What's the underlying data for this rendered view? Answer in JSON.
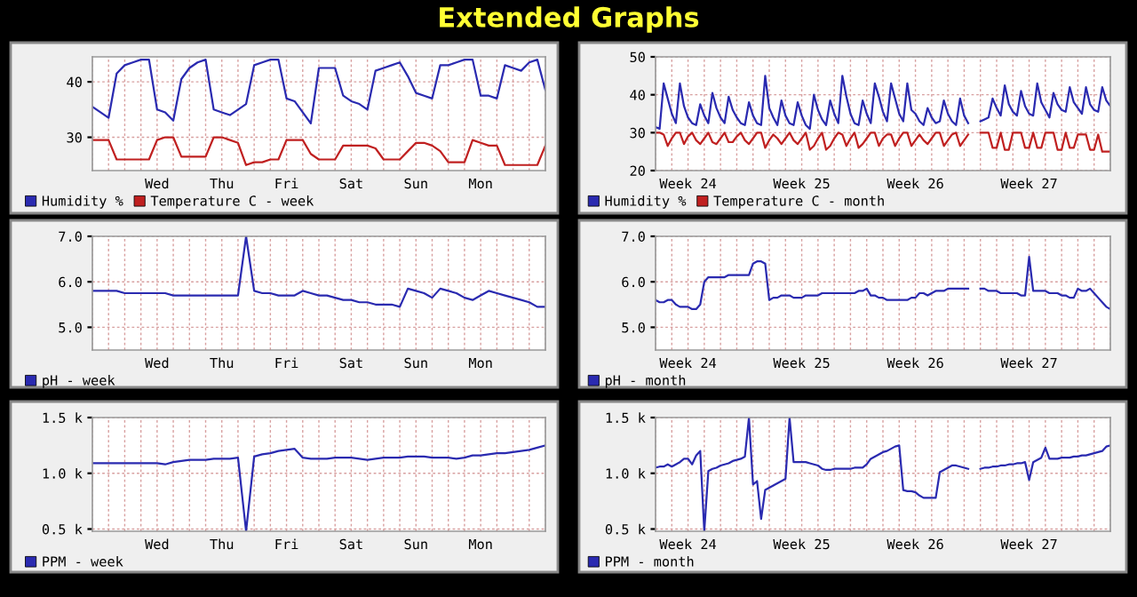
{
  "chart_data": [
    {
      "type": "line",
      "title": "Extended Graphs",
      "ylim": [
        24,
        44.5
      ],
      "yticks": [
        30,
        40
      ],
      "categories": [
        null,
        null,
        null,
        null,
        null,
        null,
        null,
        null,
        "Wed",
        null,
        null,
        null,
        null,
        null,
        null,
        null,
        "Thu",
        null,
        null,
        null,
        null,
        null,
        null,
        null,
        "Fri",
        null,
        null,
        null,
        null,
        null,
        null,
        null,
        "Sat",
        null,
        null,
        null,
        null,
        null,
        null,
        null,
        "Sun",
        null,
        null,
        null,
        null,
        null,
        null,
        null,
        "Mon",
        null,
        null,
        null,
        null,
        null,
        null,
        null,
        null
      ],
      "grid": true,
      "legend": "bottom",
      "series": [
        {
          "name": "Humidity %",
          "color": "#2a2ab0",
          "values": [
            35.5,
            34.5,
            33.5,
            41.5,
            43,
            43.5,
            44,
            44,
            35,
            34.5,
            33,
            40.5,
            42.5,
            43.5,
            44,
            35,
            34.5,
            34,
            35,
            36,
            43,
            43.5,
            44,
            44,
            37,
            36.5,
            34.5,
            32.5,
            42.5,
            42.5,
            42.5,
            37.5,
            36.5,
            36,
            35,
            42,
            42.5,
            43,
            43.5,
            41,
            38,
            37.5,
            37,
            43,
            43,
            43.5,
            44,
            44,
            37.5,
            37.5,
            37,
            43,
            42.5,
            42,
            43.5,
            44,
            38.5
          ]
        },
        {
          "name": "Temperature C - week",
          "color": "#c02020",
          "values": [
            29.5,
            29.5,
            29.5,
            26,
            26,
            26,
            26,
            26,
            29.5,
            30,
            30,
            26.5,
            26.5,
            26.5,
            26.5,
            30,
            30,
            29.5,
            29,
            25,
            25.5,
            25.5,
            26,
            26,
            29.5,
            29.5,
            29.5,
            27,
            26,
            26,
            26,
            28.5,
            28.5,
            28.5,
            28.5,
            28,
            26,
            26,
            26,
            27.5,
            29,
            29,
            28.5,
            27.5,
            25.5,
            25.5,
            25.5,
            29.5,
            29,
            28.5,
            28.5,
            25,
            25,
            25,
            25,
            25,
            28.5
          ]
        }
      ]
    },
    {
      "type": "line",
      "ylim": [
        20,
        50
      ],
      "yticks": [
        20,
        30,
        40,
        50
      ],
      "categories": [
        null,
        null,
        null,
        null,
        null,
        null,
        null,
        null,
        "Week 24",
        null,
        null,
        null,
        null,
        null,
        null,
        null,
        null,
        null,
        null,
        null,
        null,
        null,
        null,
        null,
        null,
        null,
        null,
        null,
        null,
        null,
        null,
        null,
        null,
        null,
        null,
        null,
        "Week 25",
        null,
        null,
        null,
        null,
        null,
        null,
        null,
        null,
        null,
        null,
        null,
        null,
        null,
        null,
        null,
        null,
        null,
        null,
        null,
        null,
        null,
        null,
        null,
        null,
        null,
        null,
        null,
        "Week 26",
        null,
        null,
        null,
        null,
        null,
        null,
        null,
        null,
        null,
        null,
        null,
        null,
        null,
        null,
        null,
        null,
        null,
        null,
        null,
        null,
        null,
        null,
        null,
        null,
        null,
        null,
        null,
        "Week 27",
        null,
        null,
        null,
        null,
        null,
        null,
        null,
        null,
        null,
        null,
        null,
        null,
        null,
        null,
        null,
        null,
        null,
        null,
        null,
        null
      ],
      "grid": true,
      "legend": "bottom",
      "series": [
        {
          "name": "Humidity %",
          "color": "#2a2ab0",
          "values": [
            31.5,
            31,
            43,
            39,
            35,
            32.5,
            43,
            37,
            34,
            32.5,
            32,
            37.5,
            34.5,
            32.5,
            40.5,
            36.5,
            34,
            32.5,
            39.5,
            36,
            34,
            32.5,
            32,
            38,
            34.5,
            32.5,
            32,
            45,
            36.5,
            34,
            32,
            38.5,
            34.5,
            32.5,
            32,
            38,
            34.5,
            32,
            31,
            40,
            36,
            33.5,
            32,
            38.5,
            35,
            32.5,
            45,
            39.5,
            35,
            32.5,
            32,
            38.5,
            35,
            32.5,
            43,
            39.5,
            35.5,
            33,
            43,
            39,
            35,
            33,
            43,
            36,
            35,
            33,
            32,
            36.5,
            34,
            32.5,
            33,
            38.5,
            35,
            33,
            32,
            39,
            34.5,
            32.5,
            null,
            null,
            33,
            33.5,
            34,
            39,
            36.5,
            34.5,
            42.5,
            37.5,
            35.5,
            34.5,
            41,
            37,
            35,
            34.5,
            43,
            38,
            36,
            34,
            40.5,
            37.5,
            36,
            35.5,
            42,
            38,
            36.5,
            35,
            42,
            37.5,
            36,
            35.5,
            42,
            38.5,
            37
          ]
        },
        {
          "name": "Temperature C - month",
          "color": "#c02020",
          "values": [
            30,
            30,
            29.5,
            26.5,
            28.5,
            30,
            30,
            27,
            29,
            30,
            28,
            27,
            28.5,
            30,
            27.5,
            27,
            28.5,
            30,
            27.5,
            27.5,
            29,
            30,
            28,
            27,
            28.5,
            30,
            30,
            26,
            28,
            29.5,
            28.5,
            27,
            28.5,
            30,
            28,
            27,
            28.5,
            30,
            25.5,
            26.5,
            28.5,
            30,
            25.5,
            26.5,
            28.5,
            30,
            29.5,
            26.5,
            28.5,
            30,
            26,
            27,
            28.5,
            30,
            30,
            26.5,
            28.5,
            29.5,
            29.5,
            26.5,
            28.5,
            30,
            30,
            26.5,
            28,
            29.5,
            28,
            27,
            28.5,
            30,
            30,
            26.5,
            28,
            29.5,
            30,
            26.5,
            28,
            29.5,
            null,
            null,
            30,
            30,
            30,
            26,
            26,
            30,
            25.5,
            25.5,
            30,
            30,
            30,
            26,
            26,
            30,
            26,
            26,
            30,
            30,
            30,
            25.5,
            25.5,
            30,
            26,
            26,
            29.5,
            29.5,
            29.5,
            25.5,
            25.5,
            29.5,
            25,
            25,
            25
          ]
        }
      ]
    },
    {
      "type": "line",
      "ylim": [
        4.5,
        7.0
      ],
      "yticks": [
        {
          "value": 5,
          "label": "5.0"
        },
        {
          "value": 6,
          "label": "6.0"
        },
        {
          "value": 7,
          "label": "7.0"
        }
      ],
      "categories": [
        null,
        null,
        null,
        null,
        null,
        null,
        null,
        null,
        "Wed",
        null,
        null,
        null,
        null,
        null,
        null,
        null,
        "Thu",
        null,
        null,
        null,
        null,
        null,
        null,
        null,
        "Fri",
        null,
        null,
        null,
        null,
        null,
        null,
        null,
        "Sat",
        null,
        null,
        null,
        null,
        null,
        null,
        null,
        "Sun",
        null,
        null,
        null,
        null,
        null,
        null,
        null,
        "Mon",
        null,
        null,
        null,
        null,
        null,
        null,
        null,
        null
      ],
      "grid": true,
      "legend": "bottom",
      "series": [
        {
          "name": "pH - week",
          "color": "#2a2ab0",
          "values": [
            5.8,
            5.8,
            5.8,
            5.8,
            5.75,
            5.75,
            5.75,
            5.75,
            5.75,
            5.75,
            5.7,
            5.7,
            5.7,
            5.7,
            5.7,
            5.7,
            5.7,
            5.7,
            5.7,
            7.0,
            5.8,
            5.75,
            5.75,
            5.7,
            5.7,
            5.7,
            5.8,
            5.75,
            5.7,
            5.7,
            5.65,
            5.6,
            5.6,
            5.55,
            5.55,
            5.5,
            5.5,
            5.5,
            5.45,
            5.85,
            5.8,
            5.75,
            5.65,
            5.85,
            5.8,
            5.75,
            5.65,
            5.6,
            5.7,
            5.8,
            5.75,
            5.7,
            5.65,
            5.6,
            5.55,
            5.45,
            5.45
          ]
        }
      ]
    },
    {
      "type": "line",
      "ylim": [
        4.5,
        7.0
      ],
      "yticks": [
        {
          "value": 5,
          "label": "5.0"
        },
        {
          "value": 6,
          "label": "6.0"
        },
        {
          "value": 7,
          "label": "7.0"
        }
      ],
      "categories": [
        null,
        null,
        null,
        null,
        null,
        null,
        null,
        null,
        "Week 24",
        null,
        null,
        null,
        null,
        null,
        null,
        null,
        null,
        null,
        null,
        null,
        null,
        null,
        null,
        null,
        null,
        null,
        null,
        null,
        null,
        null,
        null,
        null,
        null,
        null,
        null,
        null,
        "Week 25",
        null,
        null,
        null,
        null,
        null,
        null,
        null,
        null,
        null,
        null,
        null,
        null,
        null,
        null,
        null,
        null,
        null,
        null,
        null,
        null,
        null,
        null,
        null,
        null,
        null,
        null,
        null,
        "Week 26",
        null,
        null,
        null,
        null,
        null,
        null,
        null,
        null,
        null,
        null,
        null,
        null,
        null,
        null,
        null,
        null,
        null,
        null,
        null,
        null,
        null,
        null,
        null,
        null,
        null,
        null,
        null,
        "Week 27",
        null,
        null,
        null,
        null,
        null,
        null,
        null,
        null,
        null,
        null,
        null,
        null,
        null,
        null,
        null,
        null,
        null,
        null,
        null,
        null
      ],
      "grid": true,
      "legend": "bottom",
      "series": [
        {
          "name": "pH - month",
          "color": "#2a2ab0",
          "values": [
            5.6,
            5.55,
            5.55,
            5.6,
            5.6,
            5.5,
            5.45,
            5.45,
            5.45,
            5.4,
            5.4,
            5.5,
            6.0,
            6.1,
            6.1,
            6.1,
            6.1,
            6.1,
            6.15,
            6.15,
            6.15,
            6.15,
            6.15,
            6.15,
            6.4,
            6.45,
            6.45,
            6.4,
            5.6,
            5.65,
            5.65,
            5.7,
            5.7,
            5.7,
            5.65,
            5.65,
            5.65,
            5.7,
            5.7,
            5.7,
            5.7,
            5.75,
            5.75,
            5.75,
            5.75,
            5.75,
            5.75,
            5.75,
            5.75,
            5.75,
            5.8,
            5.8,
            5.85,
            5.7,
            5.7,
            5.65,
            5.65,
            5.6,
            5.6,
            5.6,
            5.6,
            5.6,
            5.6,
            5.65,
            5.65,
            5.75,
            5.75,
            5.7,
            5.75,
            5.8,
            5.8,
            5.8,
            5.85,
            5.85,
            5.85,
            5.85,
            5.85,
            5.85,
            null,
            null,
            5.85,
            5.85,
            5.8,
            5.8,
            5.8,
            5.75,
            5.75,
            5.75,
            5.75,
            5.75,
            5.7,
            5.7,
            6.55,
            5.8,
            5.8,
            5.8,
            5.8,
            5.75,
            5.75,
            5.75,
            5.7,
            5.7,
            5.65,
            5.65,
            5.85,
            5.8,
            5.8,
            5.85,
            5.75,
            5.65,
            5.55,
            5.45,
            5.4
          ]
        }
      ]
    },
    {
      "type": "line",
      "ylim": [
        480,
        1500
      ],
      "yticks": [
        {
          "value": 500,
          "label": "0.5 k"
        },
        {
          "value": 1000,
          "label": "1.0 k"
        },
        {
          "value": 1500,
          "label": "1.5 k"
        }
      ],
      "categories": [
        null,
        null,
        null,
        null,
        null,
        null,
        null,
        null,
        "Wed",
        null,
        null,
        null,
        null,
        null,
        null,
        null,
        "Thu",
        null,
        null,
        null,
        null,
        null,
        null,
        null,
        "Fri",
        null,
        null,
        null,
        null,
        null,
        null,
        null,
        "Sat",
        null,
        null,
        null,
        null,
        null,
        null,
        null,
        "Sun",
        null,
        null,
        null,
        null,
        null,
        null,
        null,
        "Mon",
        null,
        null,
        null,
        null,
        null,
        null,
        null,
        null
      ],
      "grid": true,
      "legend": "bottom",
      "series": [
        {
          "name": "PPM - week",
          "color": "#2a2ab0",
          "values": [
            1090,
            1090,
            1090,
            1090,
            1090,
            1090,
            1090,
            1090,
            1090,
            1080,
            1100,
            1110,
            1120,
            1120,
            1120,
            1130,
            1130,
            1130,
            1140,
            480,
            1150,
            1170,
            1180,
            1200,
            1210,
            1220,
            1140,
            1130,
            1130,
            1130,
            1140,
            1140,
            1140,
            1130,
            1120,
            1130,
            1140,
            1140,
            1140,
            1150,
            1150,
            1150,
            1140,
            1140,
            1140,
            1130,
            1140,
            1160,
            1160,
            1170,
            1180,
            1180,
            1190,
            1200,
            1210,
            1230,
            1250
          ]
        }
      ]
    },
    {
      "type": "line",
      "ylim": [
        480,
        1500
      ],
      "yticks": [
        {
          "value": 500,
          "label": "0.5 k"
        },
        {
          "value": 1000,
          "label": "1.0 k"
        },
        {
          "value": 1500,
          "label": "1.5 k"
        }
      ],
      "categories": [
        null,
        null,
        null,
        null,
        null,
        null,
        null,
        null,
        "Week 24",
        null,
        null,
        null,
        null,
        null,
        null,
        null,
        null,
        null,
        null,
        null,
        null,
        null,
        null,
        null,
        null,
        null,
        null,
        null,
        null,
        null,
        null,
        null,
        null,
        null,
        null,
        null,
        "Week 25",
        null,
        null,
        null,
        null,
        null,
        null,
        null,
        null,
        null,
        null,
        null,
        null,
        null,
        null,
        null,
        null,
        null,
        null,
        null,
        null,
        null,
        null,
        null,
        null,
        null,
        null,
        null,
        "Week 26",
        null,
        null,
        null,
        null,
        null,
        null,
        null,
        null,
        null,
        null,
        null,
        null,
        null,
        null,
        null,
        null,
        null,
        null,
        null,
        null,
        null,
        null,
        null,
        null,
        null,
        null,
        null,
        "Week 27",
        null,
        null,
        null,
        null,
        null,
        null,
        null,
        null,
        null,
        null,
        null,
        null,
        null,
        null,
        null,
        null,
        null,
        null,
        null,
        null
      ],
      "grid": true,
      "legend": "bottom",
      "series": [
        {
          "name": "PPM - month",
          "color": "#2a2ab0",
          "values": [
            1050,
            1060,
            1060,
            1080,
            1060,
            1080,
            1100,
            1130,
            1130,
            1080,
            1160,
            1200,
            480,
            1020,
            1040,
            1050,
            1070,
            1080,
            1090,
            1110,
            1120,
            1130,
            1150,
            1500,
            900,
            930,
            590,
            850,
            870,
            890,
            910,
            930,
            950,
            1500,
            1100,
            1100,
            1100,
            1100,
            1090,
            1080,
            1070,
            1040,
            1030,
            1030,
            1040,
            1040,
            1040,
            1040,
            1040,
            1050,
            1050,
            1050,
            1080,
            1130,
            1150,
            1170,
            1190,
            1200,
            1220,
            1240,
            1250,
            850,
            840,
            840,
            830,
            800,
            780,
            780,
            780,
            780,
            1010,
            1030,
            1050,
            1070,
            1070,
            1060,
            1050,
            1040,
            null,
            null,
            1040,
            1050,
            1050,
            1060,
            1060,
            1070,
            1070,
            1080,
            1080,
            1090,
            1090,
            1100,
            940,
            1100,
            1120,
            1140,
            1230,
            1130,
            1130,
            1130,
            1140,
            1140,
            1140,
            1150,
            1150,
            1160,
            1160,
            1170,
            1180,
            1190,
            1200,
            1240,
            1250
          ]
        }
      ]
    }
  ]
}
